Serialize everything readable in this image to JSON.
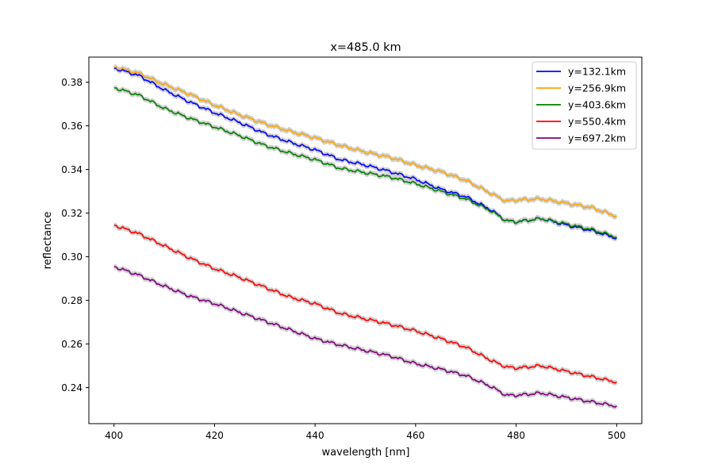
{
  "chart_data": {
    "type": "line",
    "title": "x=485.0 km",
    "xlabel": "wavelength [nm]",
    "ylabel": "reflectance",
    "xlim": [
      395,
      505
    ],
    "ylim": [
      0.2235,
      0.3915
    ],
    "xticks": [
      400,
      420,
      440,
      460,
      480,
      500
    ],
    "xtick_labels": [
      "400",
      "420",
      "440",
      "460",
      "480",
      "500"
    ],
    "yticks": [
      0.24,
      0.26,
      0.28,
      0.3,
      0.32,
      0.34,
      0.36,
      0.38
    ],
    "ytick_labels": [
      "0.24",
      "0.26",
      "0.28",
      "0.30",
      "0.32",
      "0.34",
      "0.36",
      "0.38"
    ],
    "grid": false,
    "legend_position": "top-right",
    "uncertainty_band": {
      "color": "#c8c8c8",
      "half_width": 0.0012
    },
    "x": [
      400,
      405,
      410,
      415,
      420,
      425,
      430,
      435,
      440,
      445,
      450,
      455,
      460,
      465,
      470,
      475,
      478,
      480,
      485,
      490,
      495,
      500
    ],
    "series": [
      {
        "name": "y=132.1km",
        "color": "#0000ff",
        "values": [
          0.3865,
          0.383,
          0.3765,
          0.371,
          0.366,
          0.3615,
          0.3565,
          0.3525,
          0.349,
          0.3445,
          0.342,
          0.339,
          0.3355,
          0.331,
          0.3275,
          0.3215,
          0.3165,
          0.316,
          0.3175,
          0.3145,
          0.312,
          0.3085
        ]
      },
      {
        "name": "y=256.9km",
        "color": "#ffa500",
        "values": [
          0.387,
          0.384,
          0.379,
          0.3745,
          0.3695,
          0.365,
          0.361,
          0.3575,
          0.3545,
          0.351,
          0.348,
          0.3455,
          0.342,
          0.339,
          0.335,
          0.329,
          0.3255,
          0.326,
          0.3265,
          0.3245,
          0.3225,
          0.3185
        ]
      },
      {
        "name": "y=403.6km",
        "color": "#008000",
        "values": [
          0.3775,
          0.374,
          0.368,
          0.3635,
          0.3595,
          0.3555,
          0.351,
          0.3475,
          0.3445,
          0.3405,
          0.3385,
          0.3365,
          0.3335,
          0.33,
          0.3265,
          0.321,
          0.3165,
          0.316,
          0.3175,
          0.315,
          0.3125,
          0.309
        ]
      },
      {
        "name": "y=550.4km",
        "color": "#ff0000",
        "values": [
          0.3145,
          0.3105,
          0.305,
          0.2995,
          0.2945,
          0.2905,
          0.286,
          0.2815,
          0.2785,
          0.274,
          0.2715,
          0.269,
          0.266,
          0.2625,
          0.2585,
          0.2525,
          0.2495,
          0.249,
          0.25,
          0.2475,
          0.245,
          0.2425
        ]
      },
      {
        "name": "y=697.2km",
        "color": "#800080",
        "values": [
          0.2955,
          0.2915,
          0.2865,
          0.282,
          0.2785,
          0.2745,
          0.2705,
          0.2665,
          0.2625,
          0.2595,
          0.257,
          0.2545,
          0.251,
          0.2485,
          0.2455,
          0.2405,
          0.2365,
          0.2365,
          0.2375,
          0.2355,
          0.2335,
          0.2315
        ]
      }
    ]
  }
}
